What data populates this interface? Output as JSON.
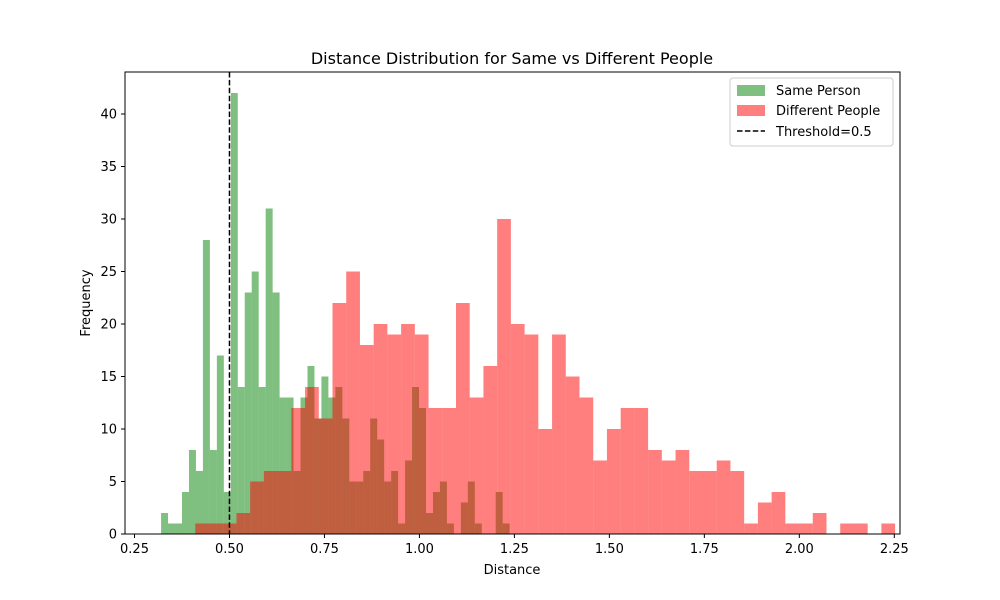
{
  "chart_data": {
    "type": "bar",
    "title": "Distance Distribution for Same vs Different People",
    "xlabel": "Distance",
    "ylabel": "Frequency",
    "xlim": [
      0.225,
      2.265
    ],
    "ylim": [
      0,
      44
    ],
    "xticks": [
      0.25,
      0.5,
      0.75,
      1.0,
      1.25,
      1.5,
      1.75,
      2.0,
      2.25
    ],
    "xtick_labels": [
      "0.25",
      "0.50",
      "0.75",
      "1.00",
      "1.25",
      "1.50",
      "1.75",
      "2.00",
      "2.25"
    ],
    "yticks": [
      0,
      5,
      10,
      15,
      20,
      25,
      30,
      35,
      40
    ],
    "ytick_labels": [
      "0",
      "5",
      "10",
      "15",
      "20",
      "25",
      "30",
      "35",
      "40"
    ],
    "grid": false,
    "legend_position": "top-right",
    "series": [
      {
        "name": "Same Person",
        "color": "#008000",
        "alpha": 0.5,
        "bin_start": 0.32,
        "bin_width": 0.01835,
        "counts": [
          2,
          1,
          1,
          4,
          8,
          6,
          28,
          8,
          17,
          4,
          42,
          14,
          23,
          25,
          14,
          31,
          23,
          13,
          13,
          6,
          13,
          16,
          11,
          15,
          13,
          14,
          11,
          5,
          5,
          6,
          11,
          9,
          5,
          6,
          1,
          7,
          14,
          12,
          2,
          4,
          5,
          1,
          0,
          3,
          5,
          1,
          0,
          0,
          4,
          1,
          0
        ]
      },
      {
        "name": "Different People",
        "color": "#ff0000",
        "alpha": 0.5,
        "bin_start": 0.41,
        "bin_width": 0.03612,
        "counts": [
          1,
          1,
          1,
          2,
          5,
          6,
          6,
          12,
          14,
          11,
          22,
          25,
          18,
          20,
          19,
          20,
          19,
          12,
          12,
          22,
          13,
          16,
          30,
          20,
          19,
          10,
          19,
          15,
          13,
          7,
          10,
          12,
          12,
          8,
          7,
          8,
          6,
          6,
          7,
          6,
          1,
          3,
          4,
          1,
          1,
          2,
          0,
          1,
          1,
          0,
          1
        ]
      }
    ],
    "threshold": {
      "name": "Threshold=0.5",
      "value": 0.5,
      "color": "#000000",
      "style": "dashed"
    }
  }
}
